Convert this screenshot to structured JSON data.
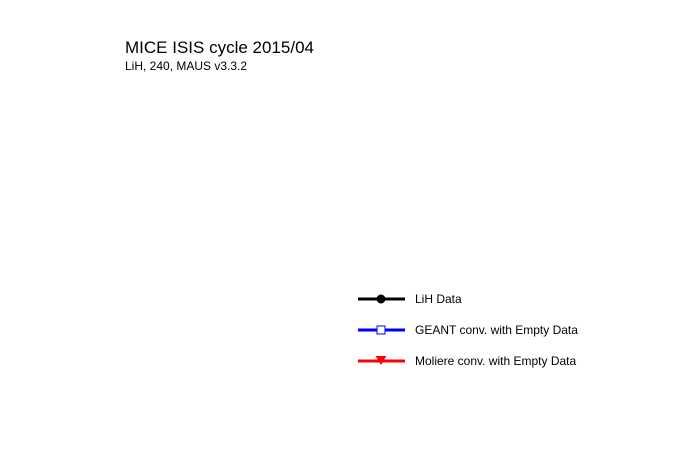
{
  "chart_data": {
    "type": "line",
    "title": "MICE ISIS cycle 2015/04",
    "subtitle": "LiH, 240, MAUS v3.3.2",
    "xlabel": "",
    "ylabel": "",
    "series": [
      {
        "name": "LiH Data",
        "color": "#000000",
        "marker": "filled-circle",
        "values": []
      },
      {
        "name": "GEANT conv. with Empty Data",
        "color": "#0000ff",
        "marker": "open-square",
        "values": []
      },
      {
        "name": "Moliere conv. with Empty Data",
        "color": "#ff0000",
        "marker": "filled-triangle-down",
        "values": []
      }
    ],
    "legend_position": "bottom-right",
    "grid": false
  }
}
